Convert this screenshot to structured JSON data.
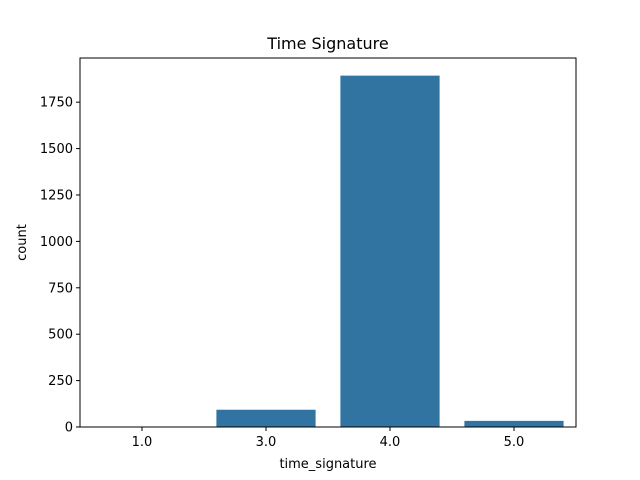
{
  "chart_data": {
    "type": "bar",
    "title": "Time Signature",
    "xlabel": "time_signature",
    "ylabel": "count",
    "categories": [
      "1.0",
      "3.0",
      "4.0",
      "5.0"
    ],
    "values": [
      1,
      93,
      1893,
      33
    ],
    "ylim": [
      0,
      1988
    ],
    "yticks": [
      0,
      250,
      500,
      750,
      1000,
      1250,
      1500,
      1750
    ],
    "bar_color": "#3274a1",
    "grid": false,
    "legend": "none"
  }
}
